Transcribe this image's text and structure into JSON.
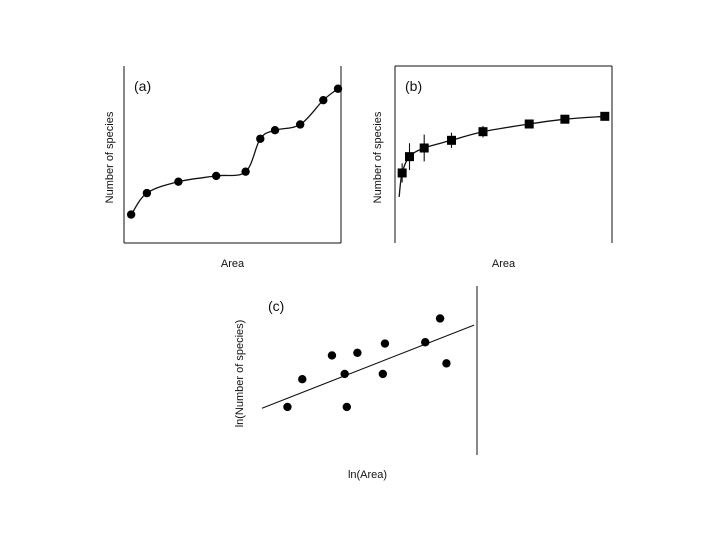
{
  "chart_data": [
    {
      "type": "line",
      "panel_label": "(a)",
      "title": "",
      "xlabel": "Area",
      "ylabel": "Number of species",
      "xlim": [
        0,
        10
      ],
      "ylim": [
        0,
        10
      ],
      "grid": false,
      "x": [
        0.15,
        0.9,
        2.4,
        4.2,
        5.6,
        6.3,
        7.0,
        8.2,
        9.3,
        10.0
      ],
      "values": [
        0.8,
        2.3,
        3.1,
        3.5,
        3.8,
        6.1,
        6.7,
        7.1,
        8.8,
        9.6
      ]
    },
    {
      "type": "line",
      "panel_label": "(b)",
      "title": "",
      "xlabel": "Area",
      "ylabel": "Number of species",
      "xlim": [
        0,
        10
      ],
      "ylim": [
        0,
        10
      ],
      "grid": false,
      "x": [
        0.15,
        0.5,
        1.2,
        2.5,
        4.0,
        6.2,
        7.9,
        9.8
      ],
      "values": [
        2.4,
        4.1,
        5.0,
        5.8,
        6.7,
        7.5,
        8.0,
        8.3
      ],
      "errors": [
        1.0,
        1.4,
        1.4,
        0.8,
        0.6,
        0.4,
        0.4,
        0.0
      ]
    },
    {
      "type": "scatter",
      "panel_label": "(c)",
      "title": "",
      "xlabel": "ln(Area)",
      "ylabel": "ln(Number of species)",
      "xlim": [
        0,
        10
      ],
      "ylim": [
        0,
        10
      ],
      "grid": false,
      "x": [
        1.2,
        1.9,
        3.3,
        4.0,
        3.9,
        4.5,
        5.7,
        5.8,
        7.7,
        8.4,
        8.7
      ],
      "values": [
        1.9,
        4.0,
        5.8,
        1.9,
        4.4,
        6.0,
        4.4,
        6.7,
        6.8,
        8.6,
        5.2
      ],
      "trendline": {
        "x": [
          0,
          10
        ],
        "y": [
          1.8,
          8.1
        ]
      }
    }
  ]
}
